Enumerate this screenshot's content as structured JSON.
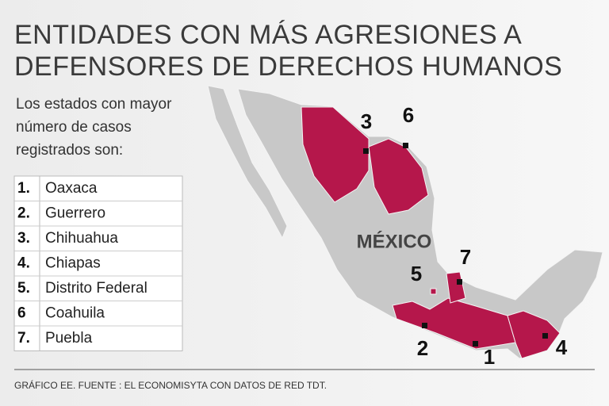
{
  "header": {
    "title_lines": [
      "ENTIDADES CON MÁS AGRESIONES A",
      "DEFENSORES DE DERECHOS HUMANOS"
    ],
    "subtitle_lines": [
      "Los estados con mayor",
      "número de casos",
      "registrados son:"
    ]
  },
  "list": [
    {
      "rank": "1.",
      "name": "Oaxaca"
    },
    {
      "rank": "2.",
      "name": "Guerrero"
    },
    {
      "rank": "3.",
      "name": "Chihuahua"
    },
    {
      "rank": "4.",
      "name": "Chiapas"
    },
    {
      "rank": "5.",
      "name": "Distrito Federal"
    },
    {
      "rank": "6",
      "name": "Coahuila"
    },
    {
      "rank": "7.",
      "name": "Puebla"
    }
  ],
  "map": {
    "country_label": "MÉXICO",
    "markers": [
      {
        "label": "3"
      },
      {
        "label": "6"
      },
      {
        "label": "5"
      },
      {
        "label": "7"
      },
      {
        "label": "2"
      },
      {
        "label": "1"
      },
      {
        "label": "4"
      }
    ]
  },
  "footer": {
    "source": "GRÁFICO EE. FUENTE : EL ECONOMISYTA CON DATOS DE RED TDT."
  }
}
